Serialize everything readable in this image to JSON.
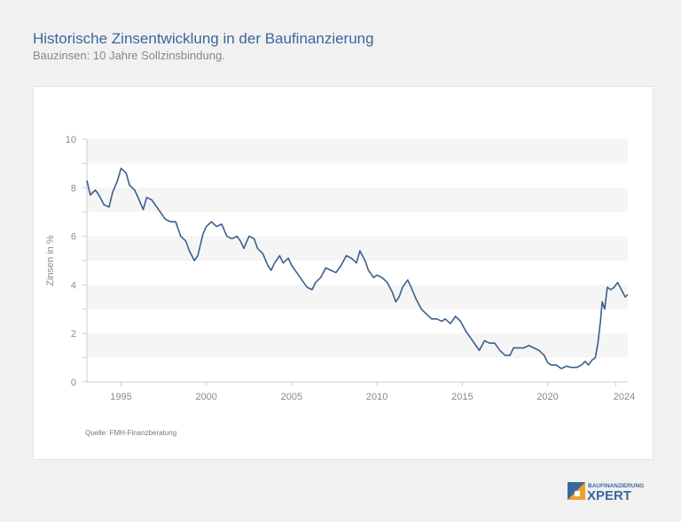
{
  "header": {
    "title": "Historische Zinsentwicklung in der Baufinanzierung",
    "subtitle": "Bauzinsen: 10 Jahre Sollzinsbindung."
  },
  "source": "Quelle: FMH-Finanzberatung",
  "logo": {
    "top": "BAUFINANZIERUNG",
    "bottom": "XPERT",
    "colors": {
      "blue": "#3b679d",
      "orange": "#f0a030"
    }
  },
  "chart_data": {
    "type": "line",
    "title": "",
    "xlabel": "",
    "ylabel": "Zinsen in %",
    "xlim": [
      1993,
      2024.7
    ],
    "ylim": [
      0,
      10
    ],
    "xticks": [
      1995,
      2000,
      2005,
      2010,
      2015,
      2020,
      2024
    ],
    "yticks": [
      0,
      2,
      4,
      6,
      8,
      10
    ],
    "bands": "alternating grey bands per 1%",
    "line_color": "#3b5f8f",
    "series": [
      {
        "x": [
          1993.0,
          1993.2,
          1993.5,
          1993.7,
          1994.0,
          1994.3,
          1994.5,
          1994.8,
          1995.0,
          1995.3,
          1995.5,
          1995.8,
          1996.0,
          1996.3,
          1996.5,
          1996.8,
          1997.0,
          1997.3,
          1997.6,
          1997.9,
          1998.2,
          1998.5,
          1998.8,
          1999.0,
          1999.3,
          1999.5,
          1999.8,
          2000.0,
          2000.3,
          2000.6,
          2000.9,
          2001.2,
          2001.5,
          2001.8,
          2002.0,
          2002.2,
          2002.5,
          2002.8,
          2003.0,
          2003.3,
          2003.6,
          2003.8,
          2004.0,
          2004.3,
          2004.5,
          2004.8,
          2005.0,
          2005.3,
          2005.6,
          2005.9,
          2006.2,
          2006.4,
          2006.7,
          2007.0,
          2007.3,
          2007.6,
          2007.9,
          2008.2,
          2008.5,
          2008.8,
          2009.0,
          2009.3,
          2009.5,
          2009.8,
          2010.0,
          2010.3,
          2010.6,
          2010.9,
          2011.1,
          2011.3,
          2011.5,
          2011.8,
          2012.0,
          2012.3,
          2012.6,
          2012.9,
          2013.2,
          2013.5,
          2013.8,
          2014.0,
          2014.3,
          2014.6,
          2014.9,
          2015.2,
          2015.5,
          2015.8,
          2016.0,
          2016.3,
          2016.6,
          2016.9,
          2017.2,
          2017.5,
          2017.8,
          2018.0,
          2018.3,
          2018.6,
          2018.9,
          2019.2,
          2019.5,
          2019.8,
          2020.0,
          2020.2,
          2020.5,
          2020.8,
          2021.1,
          2021.4,
          2021.7,
          2022.0,
          2022.2,
          2022.4,
          2022.6,
          2022.8,
          2022.95,
          2023.1,
          2023.2,
          2023.35,
          2023.5,
          2023.7,
          2023.9,
          2024.1,
          2024.4,
          2024.55,
          2024.7
        ],
        "y": [
          8.3,
          7.7,
          7.9,
          7.7,
          7.3,
          7.2,
          7.8,
          8.3,
          8.8,
          8.6,
          8.1,
          7.9,
          7.6,
          7.1,
          7.6,
          7.5,
          7.3,
          7.0,
          6.7,
          6.6,
          6.6,
          6.0,
          5.8,
          5.4,
          5.0,
          5.2,
          6.1,
          6.4,
          6.6,
          6.4,
          6.5,
          6.0,
          5.9,
          6.0,
          5.8,
          5.5,
          6.0,
          5.9,
          5.5,
          5.3,
          4.8,
          4.6,
          4.9,
          5.2,
          4.9,
          5.1,
          4.8,
          4.5,
          4.2,
          3.9,
          3.8,
          4.1,
          4.3,
          4.7,
          4.6,
          4.5,
          4.8,
          5.2,
          5.1,
          4.9,
          5.4,
          5.0,
          4.6,
          4.3,
          4.4,
          4.3,
          4.1,
          3.7,
          3.3,
          3.5,
          3.9,
          4.2,
          3.9,
          3.4,
          3.0,
          2.8,
          2.6,
          2.6,
          2.5,
          2.6,
          2.4,
          2.7,
          2.5,
          2.1,
          1.8,
          1.5,
          1.3,
          1.7,
          1.6,
          1.6,
          1.3,
          1.1,
          1.1,
          1.4,
          1.4,
          1.4,
          1.5,
          1.4,
          1.3,
          1.1,
          0.8,
          0.7,
          0.7,
          0.55,
          0.65,
          0.6,
          0.6,
          0.7,
          0.85,
          0.7,
          0.9,
          1.0,
          1.6,
          2.5,
          3.3,
          3.0,
          3.9,
          3.8,
          3.9,
          4.1,
          3.7,
          3.5,
          3.6
        ]
      }
    ]
  }
}
